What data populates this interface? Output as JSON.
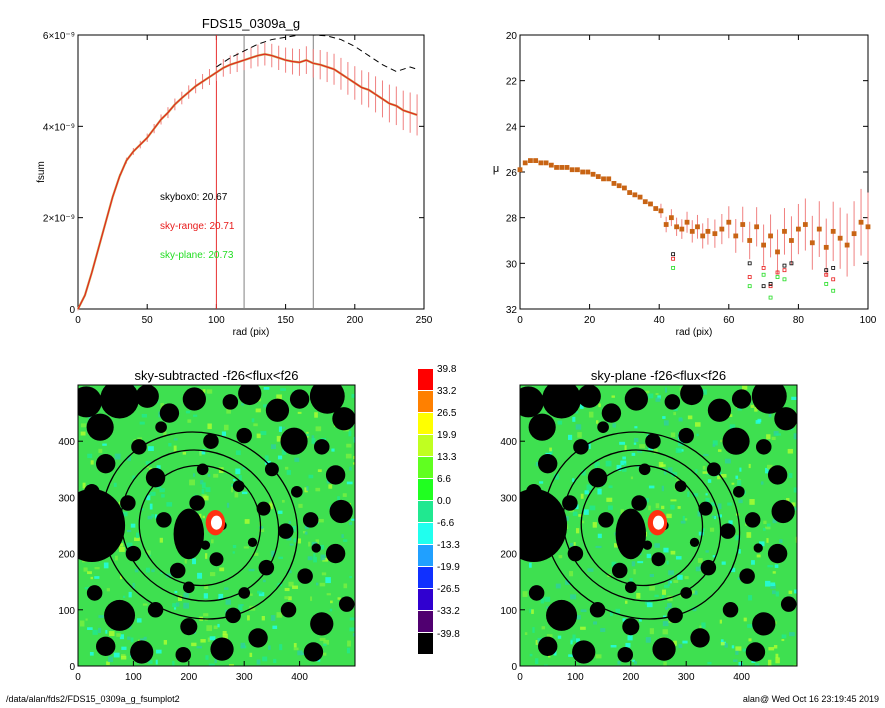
{
  "chart_data": [
    {
      "type": "line",
      "title": "FDS15_0309a_g",
      "xlabel": "rad (pix)",
      "ylabel": "fsum",
      "xlim": [
        0,
        250
      ],
      "ylim": [
        0,
        6e-09
      ],
      "xticks": [
        "0",
        "50",
        "100",
        "150",
        "200",
        "250"
      ],
      "yticks": [
        "0",
        "2×10⁻⁹",
        "4×10⁻⁹",
        "6×10⁻⁹"
      ],
      "vlines": [
        {
          "x": 100,
          "color": "#e83030"
        },
        {
          "x": 120,
          "color": "#808080"
        },
        {
          "x": 170,
          "color": "#808080"
        }
      ],
      "series": [
        {
          "color": "#e81a1a",
          "style": "solid with error bars",
          "x": [
            0,
            5,
            10,
            15,
            20,
            25,
            30,
            35,
            40,
            45,
            50,
            55,
            60,
            65,
            70,
            75,
            80,
            85,
            90,
            95,
            100,
            105,
            110,
            115,
            120,
            125,
            130,
            135,
            140,
            145,
            150,
            155,
            160,
            165,
            170,
            175,
            180,
            185,
            190,
            195,
            200,
            205,
            210,
            215,
            220,
            225,
            230,
            235,
            240,
            245
          ],
          "y": [
            0,
            3e-10,
            8e-10,
            1.35e-09,
            1.9e-09,
            2.45e-09,
            2.9e-09,
            3.25e-09,
            3.45e-09,
            3.6e-09,
            3.75e-09,
            3.95e-09,
            4.15e-09,
            4.3e-09,
            4.48e-09,
            4.62e-09,
            4.75e-09,
            4.88e-09,
            4.98e-09,
            5.08e-09,
            5.18e-09,
            5.28e-09,
            5.35e-09,
            5.4e-09,
            5.45e-09,
            5.5e-09,
            5.55e-09,
            5.58e-09,
            5.55e-09,
            5.5e-09,
            5.45e-09,
            5.42e-09,
            5.4e-09,
            5.45e-09,
            5.38e-09,
            5.35e-09,
            5.3e-09,
            5.25e-09,
            5.15e-09,
            5.05e-09,
            4.95e-09,
            4.85e-09,
            4.8e-09,
            4.7e-09,
            4.6e-09,
            4.5e-09,
            4.45e-09,
            4.35e-09,
            4.3e-09,
            4.25e-09
          ]
        },
        {
          "color": "#000000",
          "style": "dashed",
          "x": [
            100,
            110,
            120,
            130,
            140,
            150,
            160,
            170,
            180,
            190,
            200,
            210,
            220,
            230,
            240,
            245
          ],
          "y": [
            5.3e-09,
            5.5e-09,
            5.65e-09,
            5.8e-09,
            5.9e-09,
            5.95e-09,
            6e-09,
            6e-09,
            5.98e-09,
            5.9e-09,
            5.75e-09,
            5.55e-09,
            5.35e-09,
            5.2e-09,
            5.3e-09,
            5.25e-09
          ]
        }
      ],
      "annotations": [
        {
          "text": "skybox0: 20.67",
          "color": "#000000"
        },
        {
          "text": "sky-range: 20.71",
          "color": "#e81a1a"
        },
        {
          "text": "sky-plane: 20.73",
          "color": "#22dd22"
        }
      ]
    },
    {
      "type": "scatter",
      "title": "",
      "xlabel": "rad (pix)",
      "ylabel": "μ",
      "xlim": [
        0,
        100
      ],
      "ylim": [
        32,
        20
      ],
      "xticks": [
        "0",
        "20",
        "40",
        "60",
        "80",
        "100"
      ],
      "yticks": [
        "20",
        "22",
        "24",
        "26",
        "28",
        "30",
        "32"
      ],
      "series": [
        {
          "color": "#c86414",
          "marker": "square",
          "x": [
            0,
            1.5,
            3,
            4.5,
            6,
            7.5,
            9,
            10.5,
            12,
            13.5,
            15,
            16.5,
            18,
            19.5,
            21,
            22.5,
            24,
            25.5,
            27,
            28.5,
            30,
            31.5,
            33,
            34.5,
            36,
            37.5,
            39,
            40.5,
            42,
            43.5,
            45,
            46.5,
            48,
            49.5,
            51,
            52.5,
            54,
            56,
            58,
            60,
            62,
            64,
            66,
            68,
            70,
            72,
            74,
            76,
            78,
            80,
            82,
            84,
            86,
            88,
            90,
            92,
            94,
            96,
            98,
            100
          ],
          "y": [
            25.9,
            25.6,
            25.5,
            25.5,
            25.6,
            25.6,
            25.7,
            25.8,
            25.8,
            25.8,
            25.9,
            25.9,
            26.0,
            26.0,
            26.1,
            26.2,
            26.3,
            26.3,
            26.5,
            26.6,
            26.7,
            26.9,
            27.0,
            27.1,
            27.3,
            27.4,
            27.6,
            27.7,
            28.3,
            28.0,
            28.4,
            28.5,
            28.2,
            28.6,
            28.4,
            28.8,
            28.6,
            28.7,
            28.5,
            28.2,
            28.8,
            28.3,
            29.0,
            28.4,
            29.2,
            28.8,
            29.5,
            28.6,
            29.0,
            28.5,
            28.3,
            29.1,
            28.5,
            29.3,
            28.6,
            28.9,
            29.2,
            28.7,
            28.2,
            28.4
          ]
        },
        {
          "color": "#22dd22",
          "marker": "square",
          "x": [
            44,
            66,
            70,
            72,
            74,
            76,
            88,
            90
          ],
          "y": [
            30.2,
            31.0,
            30.5,
            31.5,
            30.6,
            30.7,
            30.9,
            31.2
          ]
        },
        {
          "color": "#e81a1a",
          "marker": "square",
          "x": [
            44,
            66,
            70,
            72,
            74,
            76,
            88,
            90
          ],
          "y": [
            29.8,
            30.6,
            30.2,
            31.0,
            30.4,
            30.3,
            30.5,
            30.7
          ]
        },
        {
          "color": "#000000",
          "marker": "square",
          "x": [
            44,
            66,
            70,
            72,
            76,
            78,
            88,
            90
          ],
          "y": [
            29.6,
            30.0,
            31.0,
            30.9,
            30.1,
            30.0,
            30.3,
            30.2
          ]
        }
      ]
    },
    {
      "type": "heatmap",
      "title": "sky-subtracted -f26<flux<f26",
      "xlim": [
        0,
        500
      ],
      "ylim": [
        0,
        500
      ],
      "xticks": [
        "0",
        "100",
        "200",
        "300",
        "400"
      ],
      "yticks": [
        "0",
        "100",
        "200",
        "300",
        "400"
      ]
    },
    {
      "type": "heatmap",
      "title": "sky-plane -f26<flux<f26",
      "xlim": [
        0,
        500
      ],
      "ylim": [
        0,
        500
      ],
      "xticks": [
        "0",
        "100",
        "200",
        "300",
        "400"
      ],
      "yticks": [
        "0",
        "100",
        "200",
        "300",
        "400"
      ]
    }
  ],
  "colorbar": {
    "labels": [
      "39.8",
      "33.2",
      "26.5",
      "19.9",
      "13.3",
      "6.6",
      "0.0",
      "-6.6",
      "-13.3",
      "-19.9",
      "-26.5",
      "-33.2",
      "-39.8"
    ],
    "colors": [
      "#ff0000",
      "#ff8000",
      "#ffff00",
      "#c0ff20",
      "#60ff20",
      "#20ff20",
      "#20e890",
      "#20ffee",
      "#20a0ff",
      "#1030ff",
      "#3000d0",
      "#500070",
      "#000000"
    ]
  },
  "footer": {
    "path": "/data/alan/fds2/FDS15_0309a_g_fsumplot2",
    "stamp": "alan@  Wed Oct 16 23:19:45 2019"
  }
}
